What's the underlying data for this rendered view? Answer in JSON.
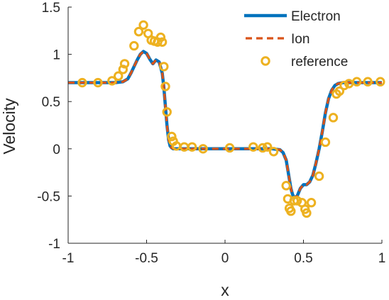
{
  "chart_data": {
    "type": "line",
    "xlabel": "x",
    "ylabel": "Velocity",
    "xlim": [
      -1,
      1
    ],
    "ylim": [
      -1,
      1.5
    ],
    "xticks": [
      -1,
      -0.5,
      0,
      0.5,
      1
    ],
    "xtick_labels": [
      "-1",
      "-0.5",
      "0",
      "0.5",
      "1"
    ],
    "yticks": [
      -1,
      -0.5,
      0,
      0.5,
      1,
      1.5
    ],
    "ytick_labels": [
      "-1",
      "-0.5",
      "0",
      "0.5",
      "1",
      "1.5"
    ],
    "grid": false,
    "legend_position": "top-right",
    "series": [
      {
        "name": "Electron",
        "style": "solid-line",
        "color": "#0072BD",
        "x": [
          -1,
          -0.8,
          -0.7,
          -0.65,
          -0.62,
          -0.6,
          -0.58,
          -0.56,
          -0.54,
          -0.52,
          -0.5,
          -0.48,
          -0.46,
          -0.44,
          -0.42,
          -0.4,
          -0.39,
          -0.38,
          -0.37,
          -0.36,
          -0.35,
          -0.34,
          -0.33,
          -0.3,
          -0.2,
          0,
          0.2,
          0.3,
          0.35,
          0.37,
          0.39,
          0.4,
          0.41,
          0.42,
          0.43,
          0.44,
          0.46,
          0.48,
          0.5,
          0.52,
          0.54,
          0.56,
          0.58,
          0.6,
          0.62,
          0.64,
          0.66,
          0.68,
          0.7,
          0.72,
          0.75,
          0.8,
          0.9,
          1
        ],
        "y": [
          0.7,
          0.7,
          0.7,
          0.71,
          0.74,
          0.8,
          0.87,
          0.94,
          1.0,
          1.03,
          1.01,
          0.95,
          0.9,
          0.94,
          0.92,
          0.8,
          0.65,
          0.45,
          0.25,
          0.1,
          0.03,
          0.01,
          0.0,
          0.0,
          0.0,
          0.0,
          0.0,
          0.0,
          -0.01,
          -0.04,
          -0.12,
          -0.22,
          -0.32,
          -0.42,
          -0.48,
          -0.52,
          -0.5,
          -0.42,
          -0.38,
          -0.38,
          -0.35,
          -0.28,
          -0.15,
          0.0,
          0.18,
          0.38,
          0.53,
          0.62,
          0.67,
          0.69,
          0.7,
          0.7,
          0.7,
          0.7
        ]
      },
      {
        "name": "Ion",
        "style": "dashed-line",
        "color": "#D95319",
        "x": [
          -1,
          -0.8,
          -0.7,
          -0.65,
          -0.62,
          -0.6,
          -0.58,
          -0.56,
          -0.54,
          -0.52,
          -0.5,
          -0.48,
          -0.46,
          -0.44,
          -0.42,
          -0.4,
          -0.39,
          -0.38,
          -0.37,
          -0.36,
          -0.35,
          -0.34,
          -0.33,
          -0.3,
          -0.2,
          0,
          0.2,
          0.3,
          0.35,
          0.37,
          0.39,
          0.4,
          0.41,
          0.42,
          0.43,
          0.44,
          0.46,
          0.48,
          0.5,
          0.52,
          0.54,
          0.56,
          0.58,
          0.6,
          0.62,
          0.64,
          0.66,
          0.68,
          0.7,
          0.72,
          0.75,
          0.8,
          0.9,
          1
        ],
        "y": [
          0.7,
          0.7,
          0.7,
          0.71,
          0.74,
          0.8,
          0.87,
          0.94,
          1.0,
          1.03,
          1.01,
          0.95,
          0.9,
          0.94,
          0.92,
          0.8,
          0.65,
          0.45,
          0.25,
          0.1,
          0.03,
          0.01,
          0.0,
          0.0,
          0.0,
          0.0,
          0.0,
          0.0,
          -0.01,
          -0.04,
          -0.12,
          -0.22,
          -0.32,
          -0.42,
          -0.48,
          -0.52,
          -0.5,
          -0.42,
          -0.38,
          -0.38,
          -0.35,
          -0.28,
          -0.15,
          0.0,
          0.18,
          0.38,
          0.53,
          0.62,
          0.67,
          0.69,
          0.7,
          0.7,
          0.7,
          0.7
        ]
      },
      {
        "name": "reference",
        "style": "circle-markers",
        "color": "#EDB120",
        "x": [
          -0.91,
          -0.81,
          -0.72,
          -0.68,
          -0.65,
          -0.64,
          -0.58,
          -0.55,
          -0.52,
          -0.49,
          -0.47,
          -0.45,
          -0.43,
          -0.41,
          -0.4,
          -0.39,
          -0.38,
          -0.37,
          -0.34,
          -0.33,
          -0.31,
          -0.26,
          -0.21,
          -0.14,
          0.03,
          0.18,
          0.24,
          0.27,
          0.31,
          0.39,
          0.4,
          0.41,
          0.42,
          0.44,
          0.46,
          0.49,
          0.51,
          0.52,
          0.55,
          0.6,
          0.64,
          0.69,
          0.71,
          0.73,
          0.76,
          0.79,
          0.84,
          0.91,
          0.99
        ],
        "y": [
          0.7,
          0.7,
          0.72,
          0.77,
          0.84,
          0.9,
          1.09,
          1.24,
          1.31,
          1.22,
          1.15,
          1.14,
          1.13,
          1.18,
          1.13,
          0.87,
          0.66,
          0.39,
          0.13,
          0.08,
          0.03,
          0.02,
          0.02,
          0.0,
          0.01,
          0.02,
          0.01,
          0.02,
          -0.03,
          -0.39,
          -0.53,
          -0.63,
          -0.66,
          -0.55,
          -0.55,
          -0.57,
          -0.64,
          -0.68,
          -0.57,
          -0.29,
          0.07,
          0.33,
          0.58,
          0.61,
          0.67,
          0.69,
          0.71,
          0.71,
          0.71
        ]
      }
    ]
  }
}
